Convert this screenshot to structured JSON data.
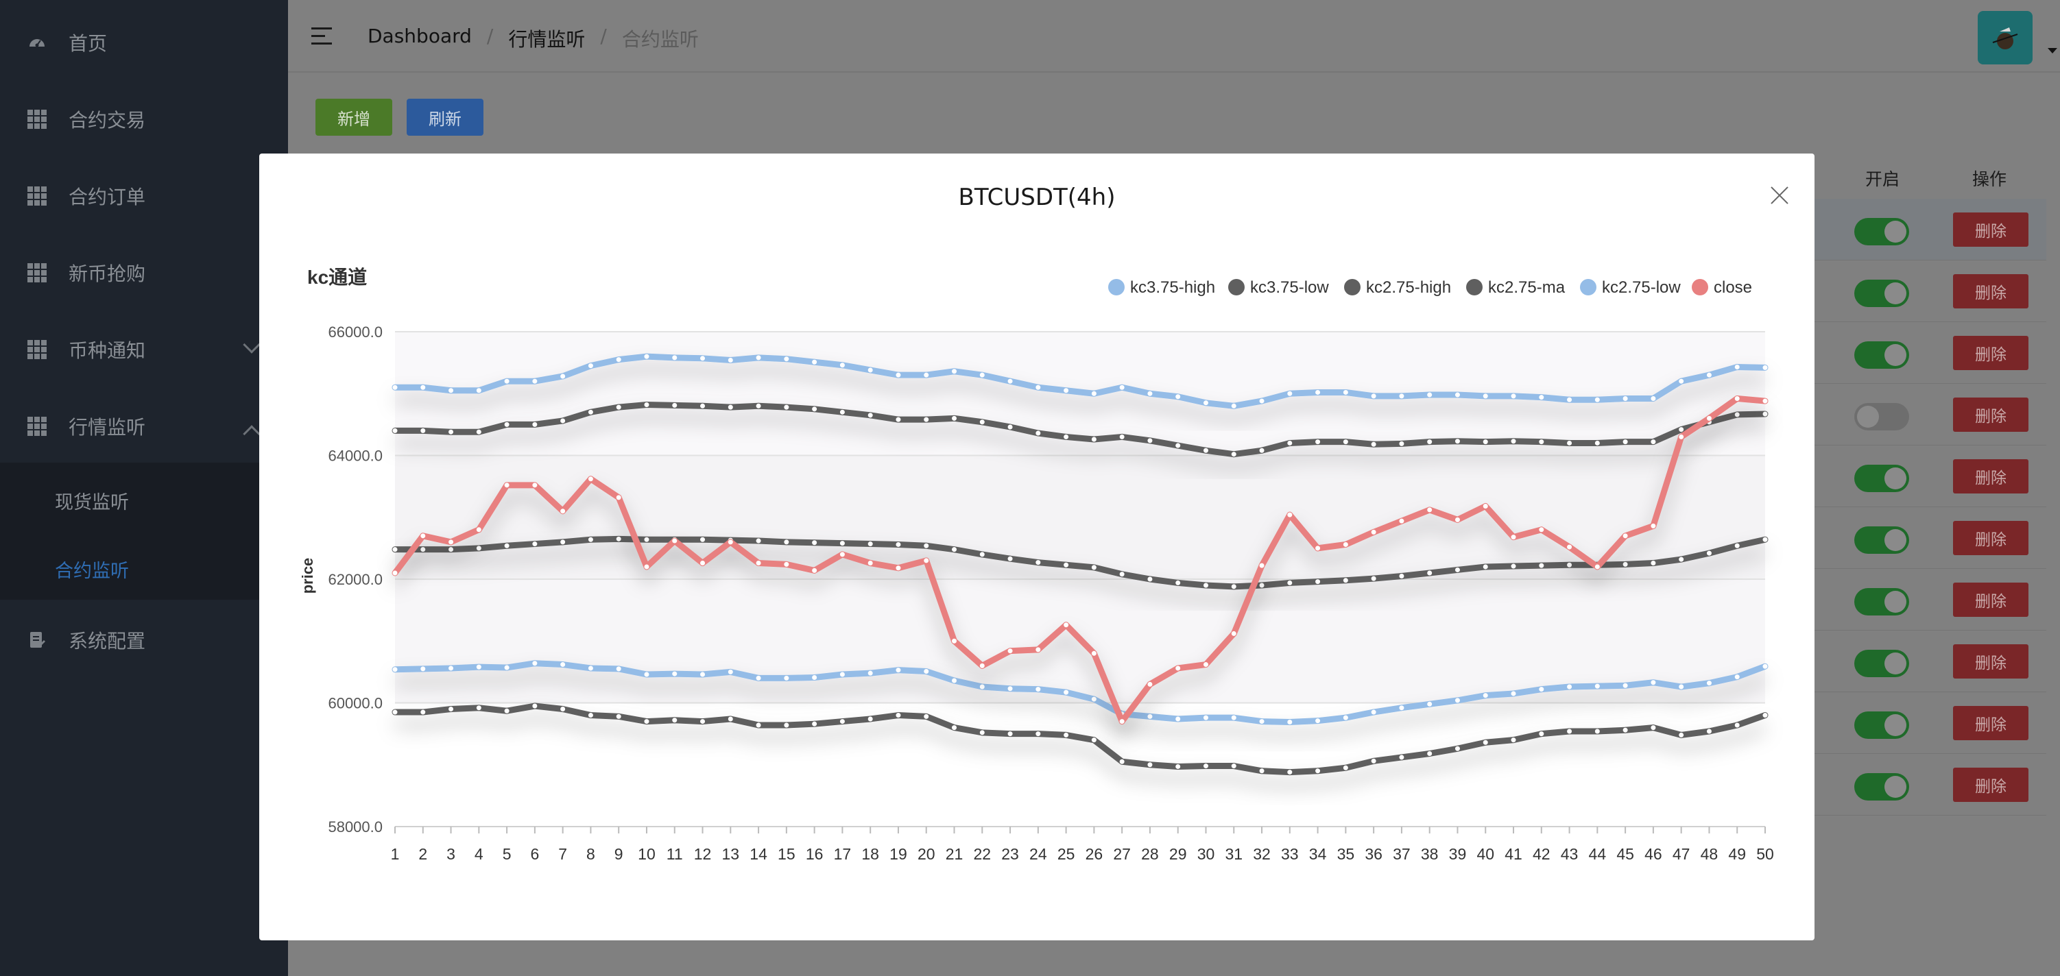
{
  "sidebar": {
    "items": [
      {
        "label": "首页",
        "icon": "dashboard-icon"
      },
      {
        "label": "合约交易",
        "icon": "grid-icon"
      },
      {
        "label": "合约订单",
        "icon": "grid-icon"
      },
      {
        "label": "新币抢购",
        "icon": "grid-icon"
      },
      {
        "label": "币种通知",
        "icon": "grid-icon"
      },
      {
        "label": "行情监听",
        "icon": "grid-icon"
      },
      {
        "label": "系统配置",
        "icon": "document-icon"
      }
    ],
    "submenu": [
      {
        "label": "现货监听"
      },
      {
        "label": "合约监听"
      }
    ]
  },
  "header": {
    "breadcrumb": [
      "Dashboard",
      "行情监听",
      "合约监听"
    ],
    "separator": "/"
  },
  "toolbar": {
    "add_label": "新增",
    "refresh_label": "刷新"
  },
  "table": {
    "headers": {
      "enabled": "开启",
      "actions": "操作"
    },
    "delete_label": "删除",
    "rows": [
      {
        "enabled": true
      },
      {
        "enabled": true
      },
      {
        "enabled": true
      },
      {
        "enabled": false
      },
      {
        "enabled": true
      },
      {
        "enabled": true
      },
      {
        "enabled": true
      },
      {
        "enabled": true
      },
      {
        "enabled": true
      },
      {
        "enabled": true
      }
    ]
  },
  "modal": {
    "title": "BTCUSDT(4h)"
  },
  "colors": {
    "blue_series": "#94bce7",
    "dark_series": "#5f5f5f",
    "red_series": "#e88080"
  },
  "chart_data": {
    "type": "line",
    "title": "kc通道",
    "ylabel": "price",
    "ylim": [
      58000,
      66000
    ],
    "y_ticks": [
      "58000.0",
      "60000.0",
      "62000.0",
      "64000.0",
      "66000.0"
    ],
    "legend_position": "top-right",
    "x": [
      1,
      2,
      3,
      4,
      5,
      6,
      7,
      8,
      9,
      10,
      11,
      12,
      13,
      14,
      15,
      16,
      17,
      18,
      19,
      20,
      21,
      22,
      23,
      24,
      25,
      26,
      27,
      28,
      29,
      30,
      31,
      32,
      33,
      34,
      35,
      36,
      37,
      38,
      39,
      40,
      41,
      42,
      43,
      44,
      45,
      46,
      47,
      48,
      49,
      50
    ],
    "series": [
      {
        "name": "kc3.75-high",
        "color": "#94bce7",
        "values": [
          65100,
          65100,
          65050,
          65050,
          65200,
          65200,
          65280,
          65450,
          65550,
          65600,
          65580,
          65570,
          65540,
          65580,
          65560,
          65510,
          65460,
          65380,
          65300,
          65300,
          65360,
          65300,
          65200,
          65100,
          65050,
          65000,
          65100,
          65000,
          64950,
          64850,
          64800,
          64880,
          65000,
          65020,
          65020,
          64960,
          64960,
          64980,
          64980,
          64960,
          64960,
          64940,
          64900,
          64900,
          64920,
          64920,
          65200,
          65300,
          65430,
          65420
        ]
      },
      {
        "name": "kc3.75-low",
        "color": "#5f5f5f",
        "values": [
          59850,
          59850,
          59900,
          59920,
          59870,
          59950,
          59900,
          59800,
          59780,
          59700,
          59720,
          59700,
          59740,
          59640,
          59640,
          59660,
          59700,
          59740,
          59800,
          59780,
          59600,
          59520,
          59500,
          59500,
          59480,
          59400,
          59050,
          59000,
          58970,
          58980,
          58980,
          58900,
          58880,
          58900,
          58950,
          59060,
          59120,
          59180,
          59260,
          59360,
          59400,
          59500,
          59540,
          59540,
          59560,
          59600,
          59480,
          59540,
          59640,
          59800
        ]
      },
      {
        "name": "kc2.75-high",
        "color": "#5f5f5f",
        "values": [
          64400,
          64400,
          64380,
          64380,
          64500,
          64500,
          64560,
          64700,
          64780,
          64820,
          64810,
          64800,
          64780,
          64800,
          64780,
          64750,
          64700,
          64650,
          64580,
          64580,
          64600,
          64540,
          64460,
          64360,
          64300,
          64260,
          64300,
          64240,
          64160,
          64080,
          64020,
          64080,
          64200,
          64220,
          64220,
          64180,
          64190,
          64220,
          64230,
          64220,
          64230,
          64220,
          64200,
          64200,
          64220,
          64220,
          64420,
          64540,
          64660,
          64670
        ]
      },
      {
        "name": "kc2.75-ma",
        "color": "#5f5f5f",
        "values": [
          62480,
          62480,
          62480,
          62500,
          62540,
          62570,
          62600,
          62640,
          62650,
          62640,
          62640,
          62640,
          62630,
          62620,
          62600,
          62590,
          62580,
          62570,
          62560,
          62540,
          62480,
          62400,
          62330,
          62270,
          62230,
          62190,
          62080,
          62000,
          61940,
          61900,
          61880,
          61900,
          61940,
          61960,
          61980,
          62010,
          62050,
          62100,
          62150,
          62200,
          62210,
          62220,
          62230,
          62230,
          62240,
          62260,
          62320,
          62420,
          62540,
          62640
        ]
      },
      {
        "name": "kc2.75-low",
        "color": "#94bce7",
        "values": [
          60540,
          60550,
          60560,
          60580,
          60570,
          60640,
          60620,
          60560,
          60550,
          60460,
          60470,
          60460,
          60500,
          60400,
          60400,
          60410,
          60460,
          60480,
          60530,
          60510,
          60360,
          60260,
          60230,
          60220,
          60170,
          60060,
          59820,
          59780,
          59740,
          59760,
          59760,
          59700,
          59690,
          59710,
          59760,
          59850,
          59920,
          59980,
          60040,
          60120,
          60150,
          60220,
          60260,
          60270,
          60280,
          60330,
          60260,
          60320,
          60420,
          60590
        ]
      },
      {
        "name": "close",
        "color": "#e88080",
        "values": [
          62100,
          62700,
          62600,
          62800,
          63520,
          63520,
          63100,
          63620,
          63320,
          62200,
          62620,
          62260,
          62600,
          62260,
          62240,
          62140,
          62400,
          62260,
          62180,
          62300,
          61000,
          60600,
          60840,
          60860,
          61260,
          60800,
          59700,
          60300,
          60560,
          60620,
          61120,
          62220,
          63040,
          62500,
          62560,
          62760,
          62940,
          63120,
          62960,
          63180,
          62680,
          62800,
          62520,
          62200,
          62700,
          62860,
          64300,
          64600,
          64920,
          64880
        ]
      }
    ]
  }
}
